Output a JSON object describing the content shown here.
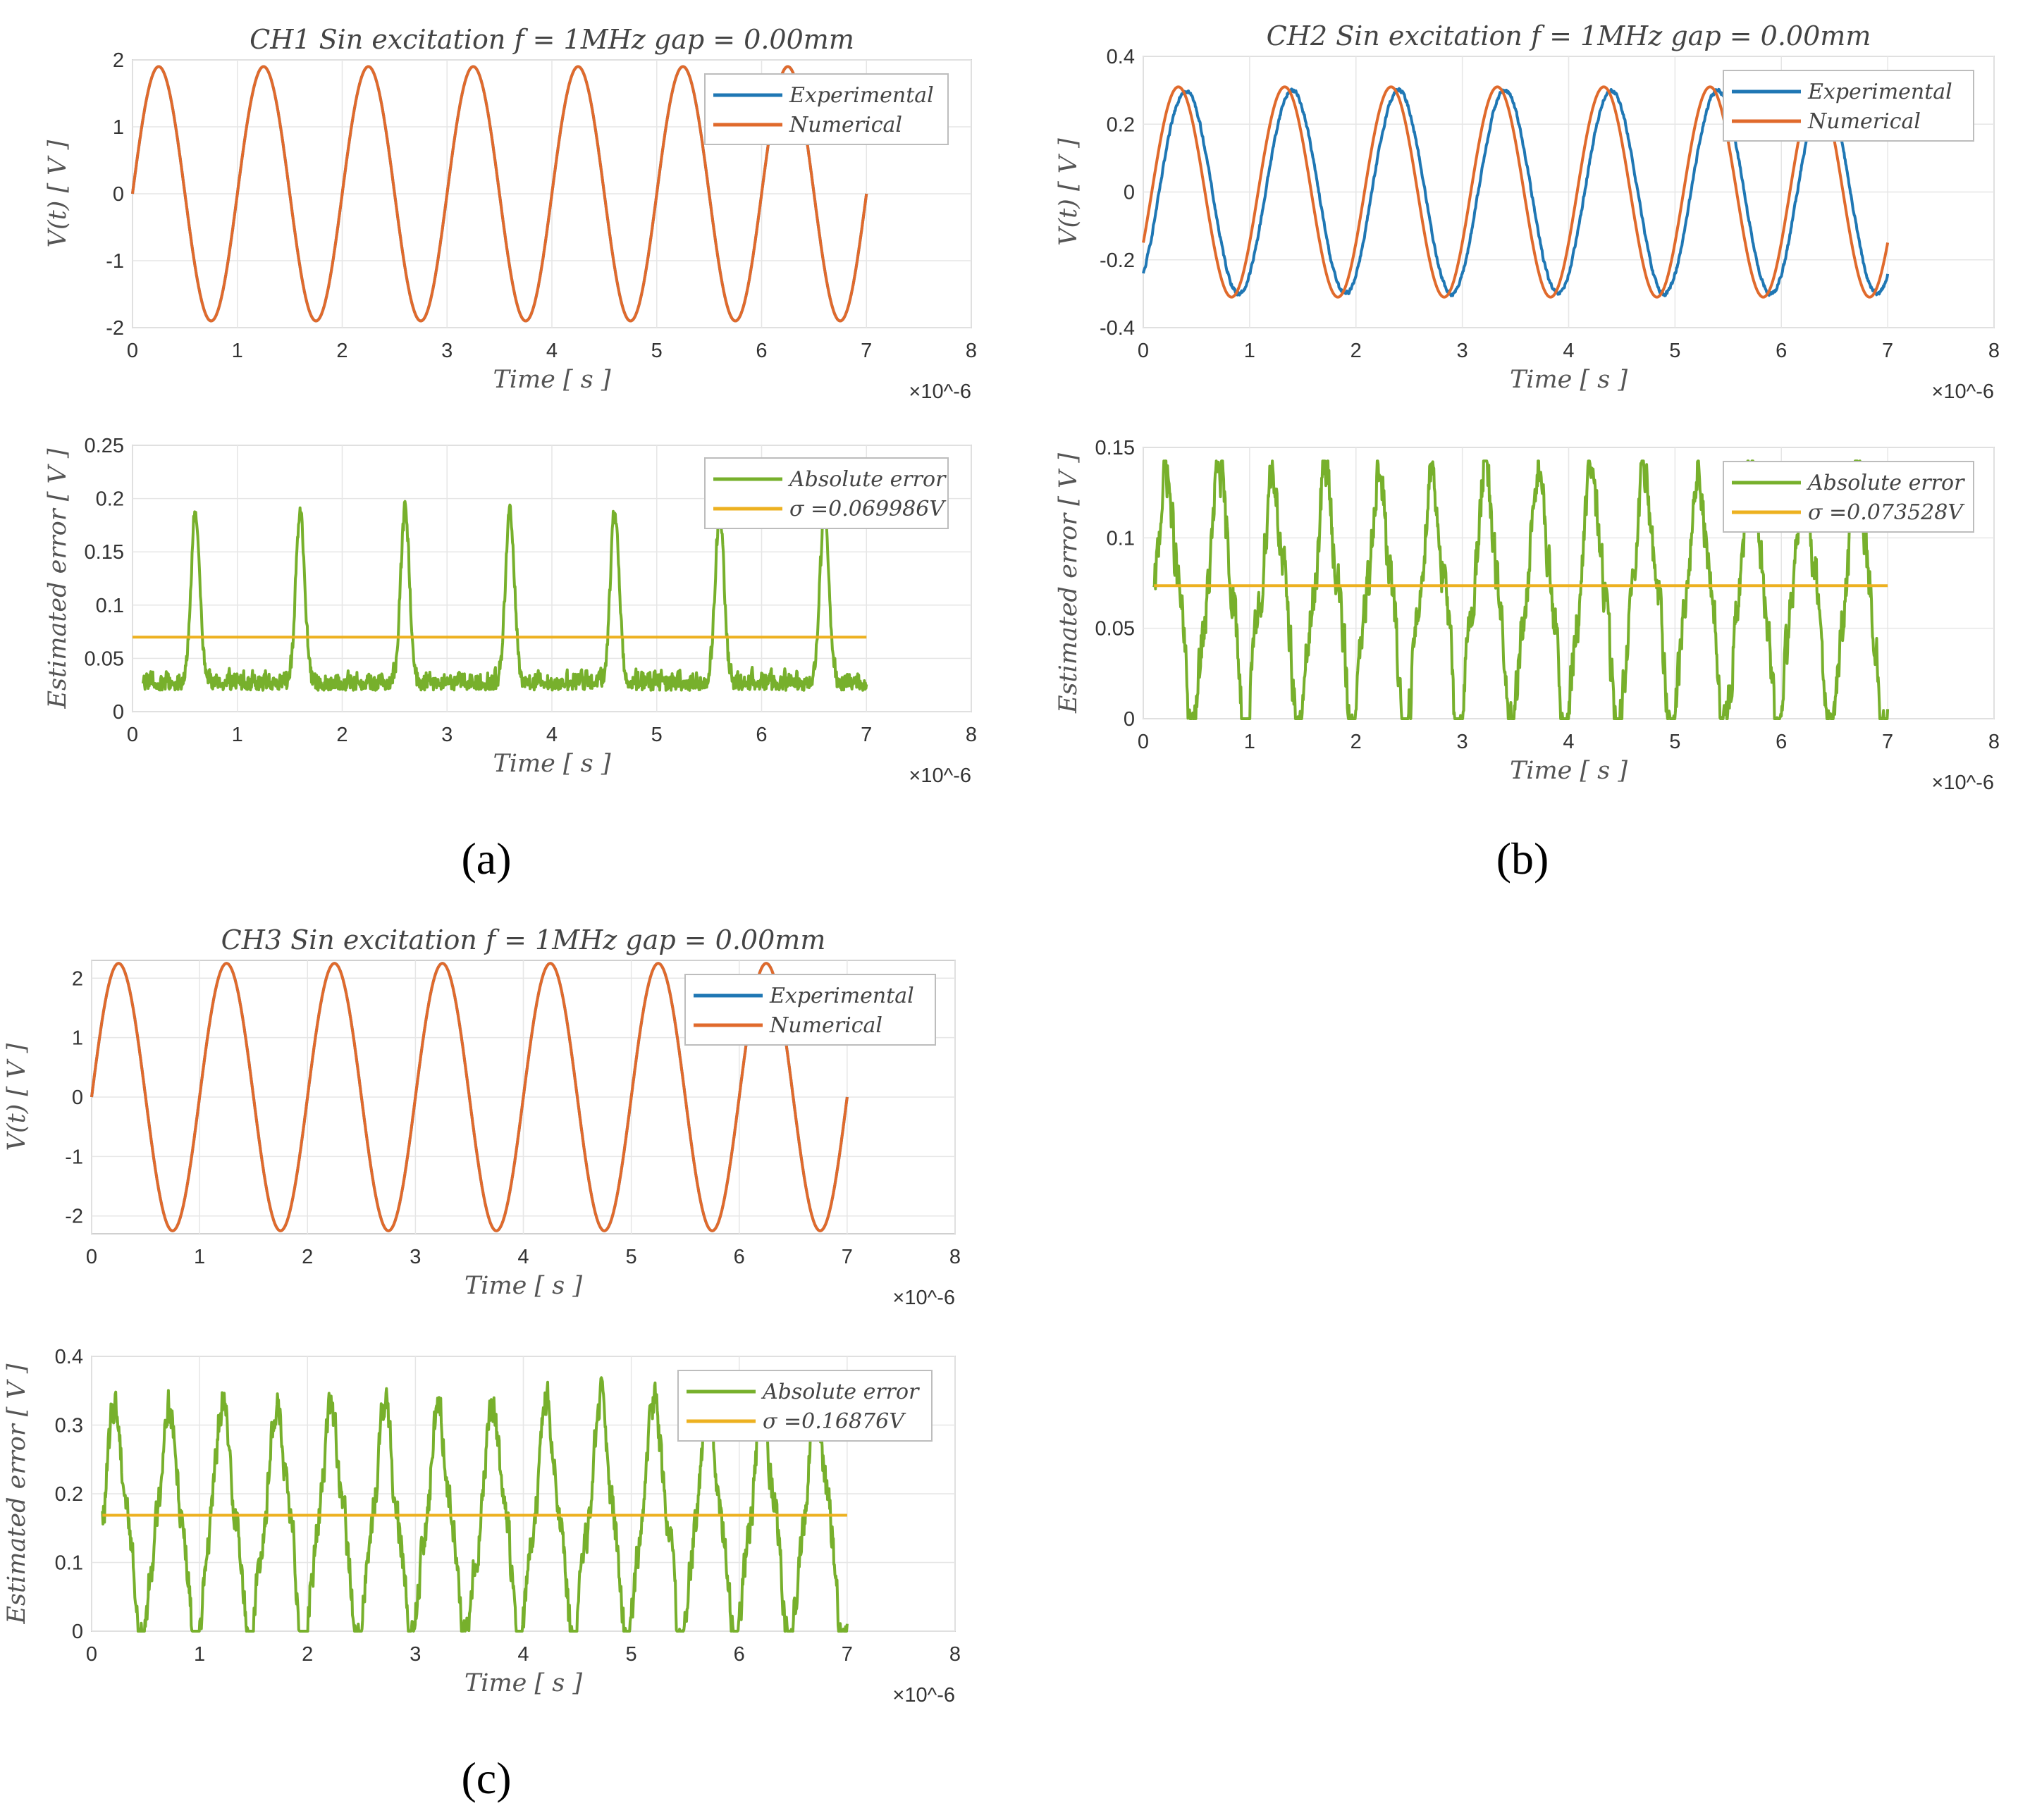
{
  "figure": {
    "panel_labels": [
      "(a)",
      "(b)",
      "(c)"
    ],
    "colors": {
      "experimental": "#1f77b4",
      "numerical": "#e06a2c",
      "absolute_error": "#77b02c",
      "sigma": "#edb120",
      "grid": "#e6e6e6",
      "axes": "#d0d0d0"
    }
  },
  "chart_data": [
    {
      "id": "ch1-voltage",
      "type": "line",
      "title": "CH1 Sin excitation f = 1MHz gap = 0.00mm",
      "xlabel": "Time [ s ]",
      "ylabel": "V(t) [ V ]",
      "x_multiplier_label": "×10^-6",
      "xlim": [
        0,
        8
      ],
      "ylim": [
        -2,
        2
      ],
      "xticks": [
        "0",
        "1",
        "2",
        "3",
        "4",
        "5",
        "6",
        "7",
        "8"
      ],
      "yticks": [
        "-2",
        "-1",
        "0",
        "1",
        "2"
      ],
      "ytick_values": [
        -2,
        -1,
        0,
        1,
        2
      ],
      "legend": [
        "Experimental",
        "Numerical"
      ],
      "series": [
        {
          "name": "Experimental",
          "kind": "sine",
          "amplitude": 1.9,
          "frequency_per_unit": 1.0,
          "phase_offset": 0.0,
          "x_end": 7.0,
          "noise": 0.0
        },
        {
          "name": "Numerical",
          "kind": "sine",
          "amplitude": 1.9,
          "frequency_per_unit": 1.0,
          "phase_offset": 0.0,
          "x_end": 7.0,
          "noise": 0.0
        }
      ]
    },
    {
      "id": "ch1-error",
      "type": "line",
      "title": "",
      "xlabel": "Time [ s ]",
      "ylabel": "Estimated error [ V ]",
      "x_multiplier_label": "×10^-6",
      "xlim": [
        0,
        8
      ],
      "ylim": [
        0,
        0.25
      ],
      "xticks": [
        "0",
        "1",
        "2",
        "3",
        "4",
        "5",
        "6",
        "7",
        "8"
      ],
      "yticks": [
        "0",
        "0.05",
        "0.1",
        "0.15",
        "0.2",
        "0.25"
      ],
      "ytick_values": [
        0,
        0.05,
        0.1,
        0.15,
        0.2,
        0.25
      ],
      "legend": [
        "Absolute error",
        "σ =0.069986V"
      ],
      "series": [
        {
          "name": "Absolute error",
          "kind": "spiky",
          "baseline": 0.03,
          "peak": 0.19,
          "peak_positions": [
            0.6,
            1.6,
            2.6,
            3.6,
            4.6,
            5.6,
            6.6
          ],
          "x_start": 0.1,
          "x_end": 7.0,
          "noise": 0.02
        },
        {
          "name": "σ =0.069986V",
          "kind": "constant",
          "value": 0.069986,
          "x_start": 0.0,
          "x_end": 7.0
        }
      ]
    },
    {
      "id": "ch2-voltage",
      "type": "line",
      "title": "CH2 Sin excitation f = 1MHz gap = 0.00mm",
      "xlabel": "Time [ s ]",
      "ylabel": "V(t) [ V ]",
      "x_multiplier_label": "×10^-6",
      "xlim": [
        0,
        8
      ],
      "ylim": [
        -0.4,
        0.4
      ],
      "xticks": [
        "0",
        "1",
        "2",
        "3",
        "4",
        "5",
        "6",
        "7",
        "8"
      ],
      "yticks": [
        "-0.4",
        "-0.2",
        "0",
        "0.2",
        "0.4"
      ],
      "ytick_values": [
        -0.4,
        -0.2,
        0,
        0.2,
        0.4
      ],
      "legend": [
        "Experimental",
        "Numerical"
      ],
      "series": [
        {
          "name": "Experimental",
          "kind": "sine",
          "amplitude": 0.3,
          "frequency_per_unit": 1.0,
          "phase_offset": -0.15,
          "x_end": 7.0,
          "noise": 0.01
        },
        {
          "name": "Numerical",
          "kind": "sine",
          "amplitude": 0.31,
          "frequency_per_unit": 1.0,
          "phase_offset": -0.08,
          "x_end": 7.0,
          "noise": 0.0
        }
      ]
    },
    {
      "id": "ch2-error",
      "type": "line",
      "title": "",
      "xlabel": "Time [ s ]",
      "ylabel": "Estimated error [ V ]",
      "x_multiplier_label": "×10^-6",
      "xlim": [
        0,
        8
      ],
      "ylim": [
        0,
        0.15
      ],
      "xticks": [
        "0",
        "1",
        "2",
        "3",
        "4",
        "5",
        "6",
        "7",
        "8"
      ],
      "yticks": [
        "0",
        "0.05",
        "0.1",
        "0.15"
      ],
      "ytick_values": [
        0,
        0.05,
        0.1,
        0.15
      ],
      "legend": [
        "Absolute error",
        "σ =0.073528V"
      ],
      "series": [
        {
          "name": "Absolute error",
          "kind": "wave",
          "mean": 0.065,
          "amplitude": 0.065,
          "frequency_per_unit": 2.0,
          "x_start": 0.1,
          "x_end": 7.0,
          "noise": 0.012
        },
        {
          "name": "σ =0.073528V",
          "kind": "constant",
          "value": 0.073528,
          "x_start": 0.1,
          "x_end": 7.0
        }
      ]
    },
    {
      "id": "ch3-voltage",
      "type": "line",
      "title": "CH3 Sin excitation f = 1MHz gap = 0.00mm",
      "xlabel": "Time [ s ]",
      "ylabel": "V(t) [ V ]",
      "x_multiplier_label": "×10^-6",
      "xlim": [
        0,
        8
      ],
      "ylim": [
        -2.3,
        2.3
      ],
      "xticks": [
        "0",
        "1",
        "2",
        "3",
        "4",
        "5",
        "6",
        "7",
        "8"
      ],
      "yticks": [
        "-2",
        "-1",
        "0",
        "1",
        "2"
      ],
      "ytick_values": [
        -2,
        -1,
        0,
        1,
        2
      ],
      "legend": [
        "Experimental",
        "Numerical"
      ],
      "series": [
        {
          "name": "Experimental",
          "kind": "sine",
          "amplitude": 2.25,
          "frequency_per_unit": 1.0,
          "phase_offset": 0.0,
          "x_end": 7.0,
          "noise": 0.0
        },
        {
          "name": "Numerical",
          "kind": "sine",
          "amplitude": 2.25,
          "frequency_per_unit": 1.0,
          "phase_offset": 0.0,
          "x_end": 7.0,
          "noise": 0.0
        }
      ]
    },
    {
      "id": "ch3-error",
      "type": "line",
      "title": "",
      "xlabel": "Time [ s ]",
      "ylabel": "Estimated error [ V ]",
      "x_multiplier_label": "×10^-6",
      "xlim": [
        0,
        8
      ],
      "ylim": [
        0,
        0.4
      ],
      "xticks": [
        "0",
        "1",
        "2",
        "3",
        "4",
        "5",
        "6",
        "7",
        "8"
      ],
      "yticks": [
        "0",
        "0.1",
        "0.2",
        "0.3",
        "0.4"
      ],
      "ytick_values": [
        0,
        0.1,
        0.2,
        0.3,
        0.4
      ],
      "legend": [
        "Absolute error",
        "σ =0.16876V"
      ],
      "series": [
        {
          "name": "Absolute error",
          "kind": "wave",
          "mean": 0.155,
          "amplitude": 0.155,
          "frequency_per_unit": 2.0,
          "x_start": 0.1,
          "x_end": 7.0,
          "noise": 0.025
        },
        {
          "name": "σ =0.16876V",
          "kind": "constant",
          "value": 0.16876,
          "x_start": 0.1,
          "x_end": 7.0
        }
      ]
    }
  ]
}
